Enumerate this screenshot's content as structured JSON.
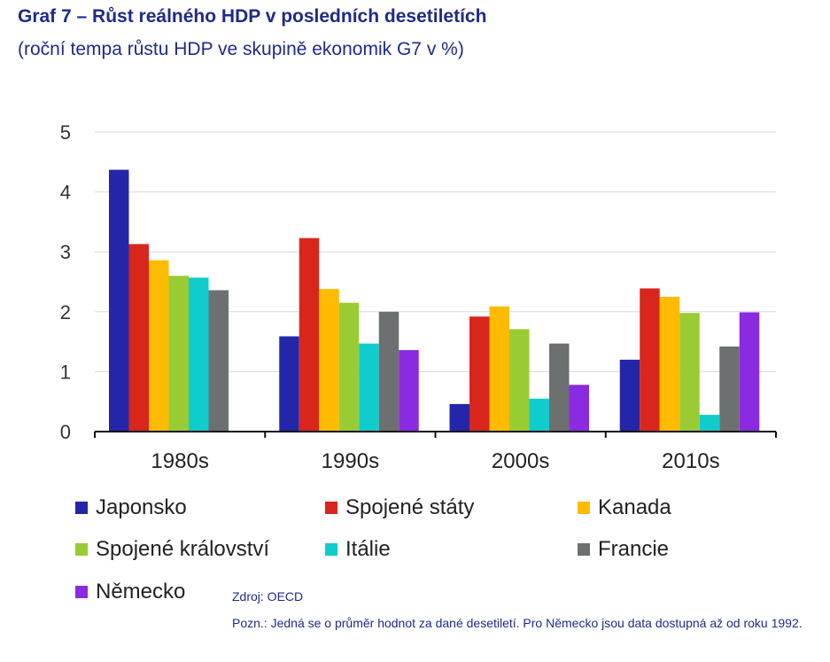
{
  "header": {
    "title": "Graf 7 – Růst reálného HDP v posledních desetiletích",
    "subtitle": "(roční tempa růstu HDP ve skupině ekonomik G7 v %)"
  },
  "chart_data": {
    "type": "bar",
    "title": "Graf 7 – Růst reálného HDP v posledních desetiletích",
    "subtitle": "(roční tempa růstu HDP ve skupině ekonomik G7 v %)",
    "xlabel": "",
    "ylabel": "",
    "ylim": [
      0,
      5
    ],
    "yticks": [
      0,
      1,
      2,
      3,
      4,
      5
    ],
    "grid": true,
    "legend_position": "bottom",
    "categories": [
      "1980s",
      "1990s",
      "2000s",
      "2010s"
    ],
    "series": [
      {
        "name": "Japonsko",
        "color": "#2326a8",
        "values": [
          4.37,
          1.59,
          0.46,
          1.2
        ]
      },
      {
        "name": "Spojené státy",
        "color": "#d9261c",
        "values": [
          3.13,
          3.23,
          1.92,
          2.39
        ]
      },
      {
        "name": "Kanada",
        "color": "#ffbb00",
        "values": [
          2.86,
          2.38,
          2.09,
          2.25
        ]
      },
      {
        "name": "Spojené království",
        "color": "#99cc33",
        "values": [
          2.6,
          2.15,
          1.71,
          1.98
        ]
      },
      {
        "name": "Itálie",
        "color": "#11cccc",
        "values": [
          2.57,
          1.47,
          0.55,
          0.28
        ]
      },
      {
        "name": "Francie",
        "color": "#6d7070",
        "values": [
          2.36,
          2.0,
          1.47,
          1.42
        ]
      },
      {
        "name": "Německo",
        "color": "#8a2be2",
        "values": [
          null,
          1.36,
          0.78,
          1.99
        ]
      }
    ]
  },
  "footer": {
    "source": "Zdroj: OECD",
    "note": "Pozn.: Jedná se o průměr hodnot za dané desetiletí. Pro Německo jsou data dostupná až od roku 1992."
  }
}
